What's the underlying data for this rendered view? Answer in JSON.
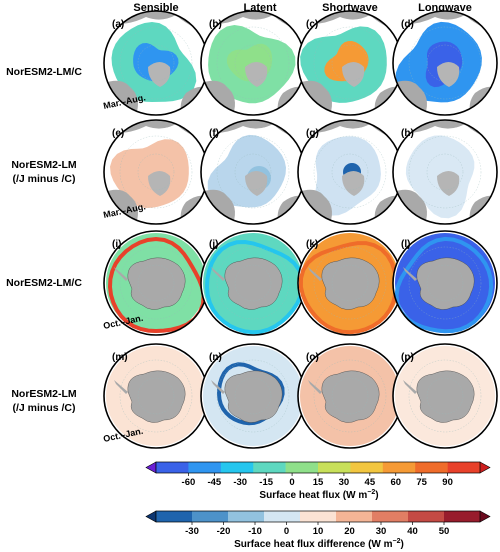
{
  "columns": [
    "Sensible",
    "Latent",
    "Shortwave",
    "Longwave"
  ],
  "rows": [
    {
      "label1": "NorESM2-LM/C",
      "label2": "",
      "hemisphere": "north",
      "kind": "absolute",
      "months": "Mar.–Aug.",
      "panels": [
        "(a)",
        "(b)",
        "(c)",
        "(d)"
      ]
    },
    {
      "label1": "NorESM2-LM",
      "label2": "(/J minus /C)",
      "hemisphere": "north",
      "kind": "difference",
      "months": "Mar.–Aug.",
      "panels": [
        "(e)",
        "(f)",
        "(g)",
        "(h)"
      ]
    },
    {
      "label1": "NorESM2-LM/C",
      "label2": "",
      "hemisphere": "south",
      "kind": "absolute",
      "months": "Oct.–Jan.",
      "panels": [
        "(i)",
        "(j)",
        "(k)",
        "(l)"
      ]
    },
    {
      "label1": "NorESM2-LM",
      "label2": "(/J minus /C)",
      "hemisphere": "south",
      "kind": "difference",
      "months": "Oct.–Jan.",
      "panels": [
        "(m)",
        "(n)",
        "(o)",
        "(p)"
      ]
    }
  ],
  "colorbar1": {
    "ticks": [
      "-60",
      "-45",
      "-30",
      "-15",
      "0",
      "15",
      "30",
      "45",
      "60",
      "75",
      "90"
    ],
    "colors": [
      "#6a1fd6",
      "#3a62e8",
      "#2f95f0",
      "#25c6ee",
      "#5ed8c0",
      "#8fe08a",
      "#c8e05a",
      "#f2c640",
      "#f59a35",
      "#ef6c2a",
      "#e8412a",
      "#cc1e1e"
    ],
    "label": "Surface heat flux (W m",
    "label_sup": "−2",
    "label_close": ")"
  },
  "colorbar2": {
    "ticks": [
      "-30",
      "-20",
      "-10",
      "0",
      "10",
      "20",
      "30",
      "40",
      "50"
    ],
    "colors": [
      "#0c3570",
      "#1f64ad",
      "#4d92c9",
      "#92c2df",
      "#d4e6f2",
      "#fbe3d4",
      "#f4b596",
      "#e17e64",
      "#c44a44",
      "#981c2c",
      "#6a0a1e"
    ],
    "label": "Surface heat flux difference (W m",
    "label_sup": "−2",
    "label_close": ")"
  },
  "field_colors": {
    "north_abs": [
      "#5ed8c0",
      "#7fe0a5",
      "#5ed8c0",
      "#2f95f0"
    ],
    "north_abs_accent": [
      "#2f95f0",
      "#8fe08a",
      "#f59a35",
      "#3a62e8"
    ],
    "south_abs": [
      "#7fe0a5",
      "#5ed8c0",
      "#f59a35",
      "#3a62e8"
    ],
    "south_abs_accent": [
      "#e8412a",
      "#25c6ee",
      "#ef6c2a",
      "#2f95f0"
    ]
  }
}
